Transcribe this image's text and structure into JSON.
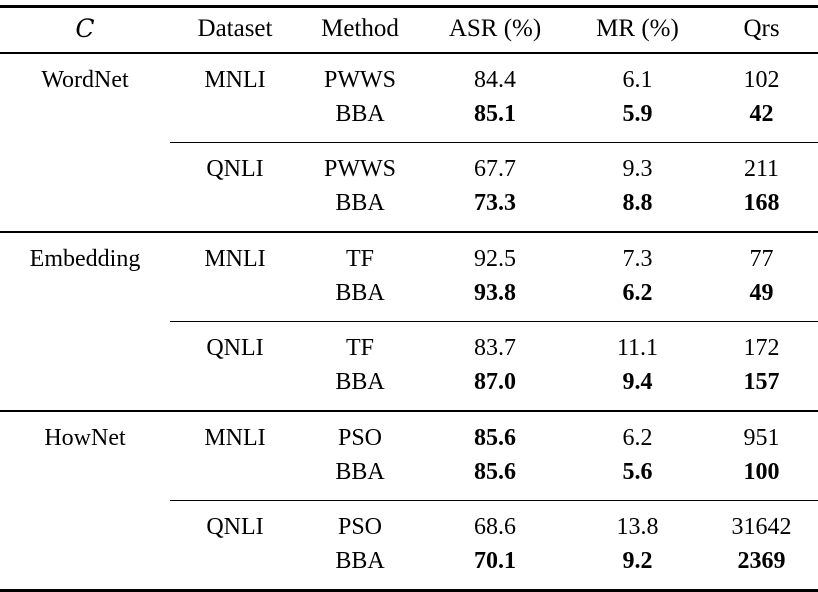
{
  "table": {
    "columns": [
      {
        "key": "c",
        "label": "C"
      },
      {
        "key": "dataset",
        "label": "Dataset"
      },
      {
        "key": "method",
        "label": "Method"
      },
      {
        "key": "asr",
        "label": "ASR (%)"
      },
      {
        "key": "mr",
        "label": "MR (%)"
      },
      {
        "key": "qrs",
        "label": "Qrs"
      }
    ],
    "rows": [
      {
        "c": "WordNet",
        "dataset": "MNLI",
        "method": "PWWS",
        "asr": "84.4",
        "mr": "6.1",
        "qrs": "102",
        "bold": []
      },
      {
        "c": "",
        "dataset": "",
        "method": "BBA",
        "asr": "85.1",
        "mr": "5.9",
        "qrs": "42",
        "bold": [
          "asr",
          "mr",
          "qrs"
        ]
      },
      {
        "c": "",
        "dataset": "QNLI",
        "method": "PWWS",
        "asr": "67.7",
        "mr": "9.3",
        "qrs": "211",
        "bold": []
      },
      {
        "c": "",
        "dataset": "",
        "method": "BBA",
        "asr": "73.3",
        "mr": "8.8",
        "qrs": "168",
        "bold": [
          "asr",
          "mr",
          "qrs"
        ]
      },
      {
        "c": "Embedding",
        "dataset": "MNLI",
        "method": "TF",
        "asr": "92.5",
        "mr": "7.3",
        "qrs": "77",
        "bold": []
      },
      {
        "c": "",
        "dataset": "",
        "method": "BBA",
        "asr": "93.8",
        "mr": "6.2",
        "qrs": "49",
        "bold": [
          "asr",
          "mr",
          "qrs"
        ]
      },
      {
        "c": "",
        "dataset": "QNLI",
        "method": "TF",
        "asr": "83.7",
        "mr": "11.1",
        "qrs": "172",
        "bold": []
      },
      {
        "c": "",
        "dataset": "",
        "method": "BBA",
        "asr": "87.0",
        "mr": "9.4",
        "qrs": "157",
        "bold": [
          "asr",
          "mr",
          "qrs"
        ]
      },
      {
        "c": "HowNet",
        "dataset": "MNLI",
        "method": "PSO",
        "asr": "85.6",
        "mr": "6.2",
        "qrs": "951",
        "bold": [
          "asr"
        ]
      },
      {
        "c": "",
        "dataset": "",
        "method": "BBA",
        "asr": "85.6",
        "mr": "5.6",
        "qrs": "100",
        "bold": [
          "asr",
          "mr",
          "qrs"
        ]
      },
      {
        "c": "",
        "dataset": "QNLI",
        "method": "PSO",
        "asr": "68.6",
        "mr": "13.8",
        "qrs": "31642",
        "bold": []
      },
      {
        "c": "",
        "dataset": "",
        "method": "BBA",
        "asr": "70.1",
        "mr": "9.2",
        "qrs": "2369",
        "bold": [
          "asr",
          "mr",
          "qrs"
        ]
      }
    ]
  }
}
